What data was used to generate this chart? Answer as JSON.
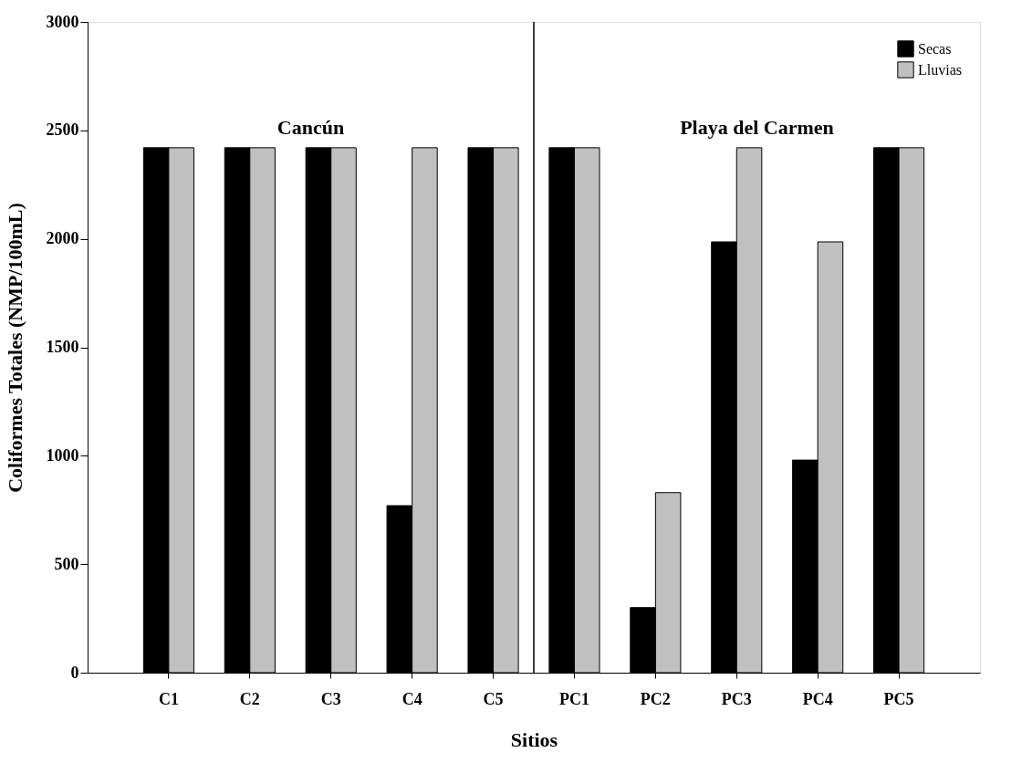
{
  "chart_data": {
    "type": "bar",
    "xlabel": "Sitios",
    "ylabel": "Coliformes Totales (NMP/100mL)",
    "categories": [
      "C1",
      "C2",
      "C3",
      "C4",
      "C5",
      "PC1",
      "PC2",
      "PC3",
      "PC4",
      "PC5"
    ],
    "series": [
      {
        "name": "Secas",
        "color": "#000000",
        "values": [
          2420,
          2420,
          2420,
          770,
          2420,
          2420,
          300,
          1986,
          980,
          2420
        ]
      },
      {
        "name": "Lluvias",
        "color": "#c0c0c0",
        "values": [
          2420,
          2420,
          2420,
          2420,
          2420,
          2420,
          830,
          2420,
          1986,
          2420
        ]
      }
    ],
    "ylim": [
      0,
      3000
    ],
    "yticks": [
      0,
      500,
      1000,
      1500,
      2000,
      2500,
      3000
    ],
    "annotations": [
      "Cancún",
      "Playa del Carmen"
    ],
    "grid": false,
    "legend": "top right"
  }
}
